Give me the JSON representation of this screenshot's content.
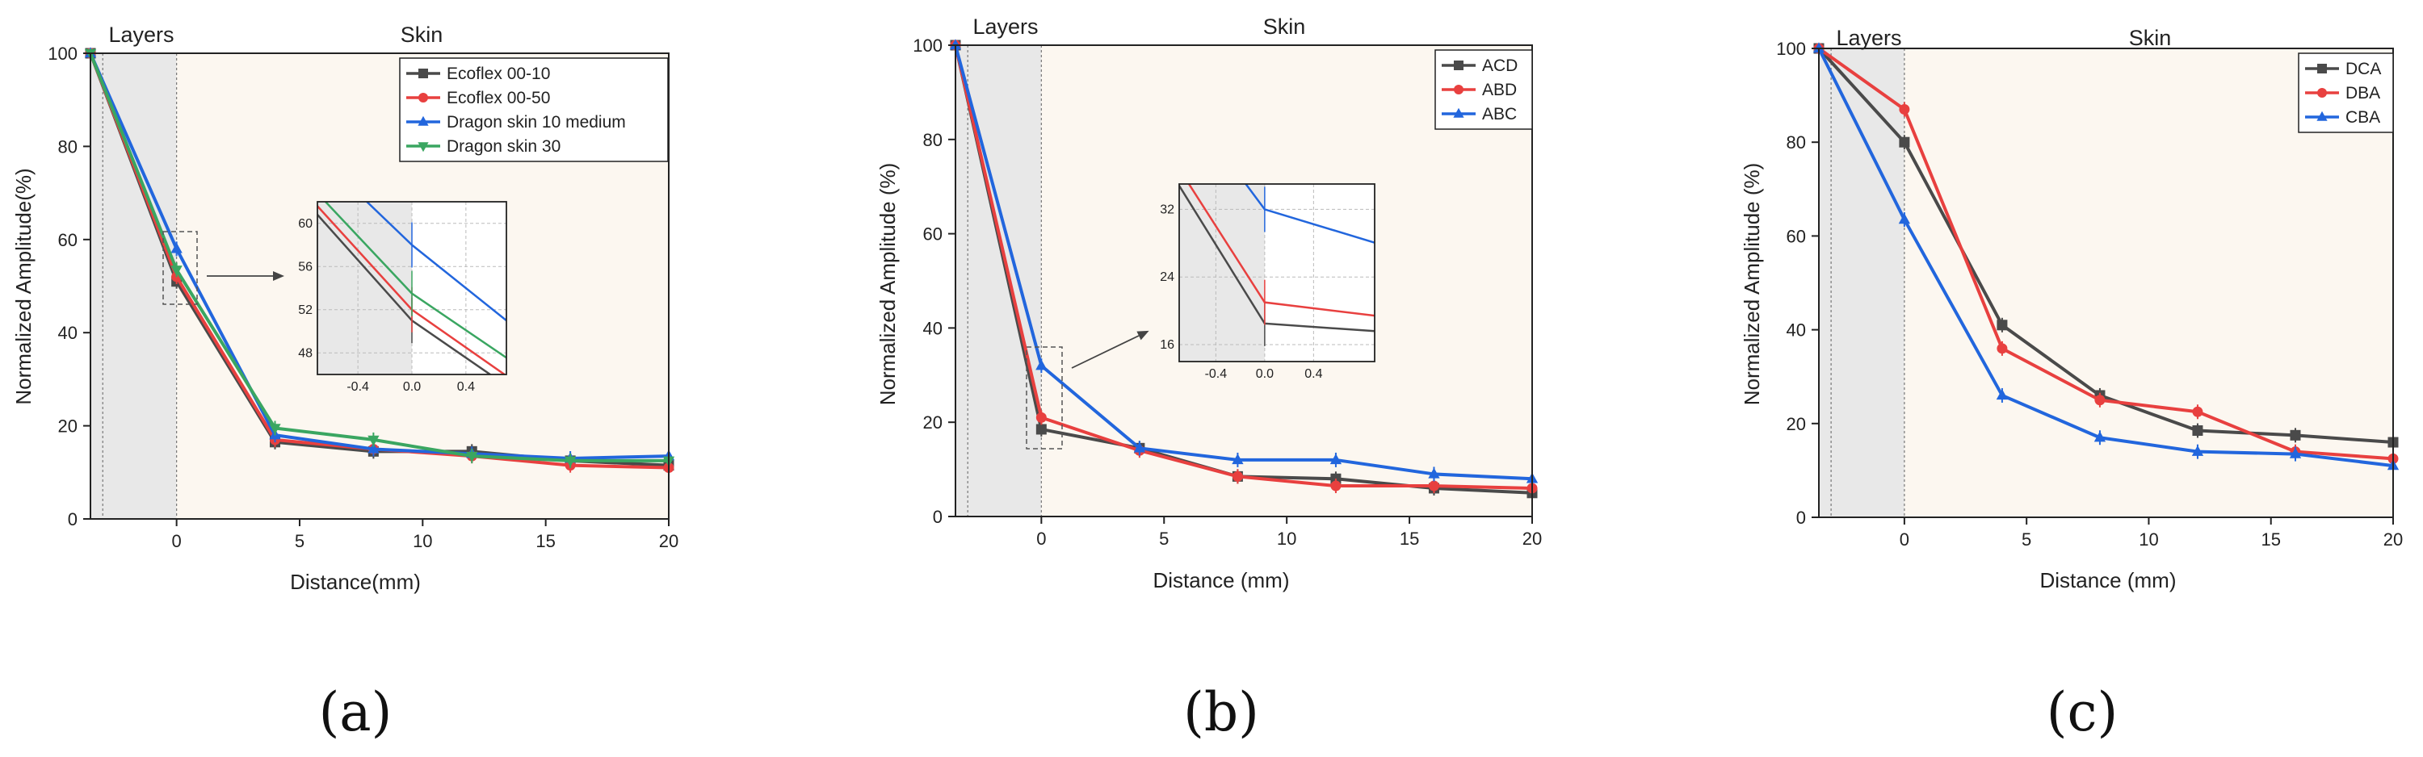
{
  "colors": {
    "layer_bg": "#e8e8e8",
    "skin_bg": "#fcf7f0",
    "black": "#4a4a4a",
    "red": "#e8403f",
    "blue": "#2266dd",
    "green": "#3aa661"
  },
  "chart_data": [
    {
      "type": "line",
      "panel_label": "(a)",
      "xlabel": "Distance(mm)",
      "ylabel": "Normalized Amplitude(%)",
      "xlim": [
        -3.5,
        20
      ],
      "ylim": [
        0,
        100
      ],
      "x_ticks": [
        "0",
        "5",
        "10",
        "15",
        "20"
      ],
      "y_ticks": [
        "0",
        "20",
        "40",
        "60",
        "80",
        "100"
      ],
      "region_labels": [
        "Layers",
        "Skin"
      ],
      "layer_region": [
        -3,
        0
      ],
      "legend": "top-right",
      "series": [
        {
          "name": "Ecoflex 00-10",
          "color_key": "black",
          "marker": "square",
          "x": [
            -3.5,
            0,
            4,
            8,
            12,
            16,
            20
          ],
          "y": [
            100,
            51,
            16.5,
            14.5,
            14.5,
            12.5,
            11.5
          ]
        },
        {
          "name": "Ecoflex 00-50",
          "color_key": "red",
          "marker": "circle",
          "x": [
            -3.5,
            0,
            4,
            8,
            12,
            16,
            20
          ],
          "y": [
            100,
            52,
            17,
            15,
            13.5,
            11.5,
            11
          ]
        },
        {
          "name": "Dragon skin 10 medium",
          "color_key": "blue",
          "marker": "triangle-up",
          "x": [
            -3.5,
            0,
            4,
            8,
            12,
            16,
            20
          ],
          "y": [
            100,
            58,
            18,
            15,
            14,
            13,
            13.5
          ]
        },
        {
          "name": "Dragon skin 30",
          "color_key": "green",
          "marker": "triangle-down",
          "x": [
            -3.5,
            0,
            4,
            8,
            12,
            16,
            20
          ],
          "y": [
            100,
            53.5,
            19.5,
            17,
            13.5,
            12.5,
            12.5
          ]
        }
      ],
      "inset": {
        "xlim": [
          -0.7,
          0.7
        ],
        "ylim": [
          46,
          62
        ],
        "x_ticks": [
          "-0.4",
          "0.0",
          "0.4"
        ],
        "y_ticks": [
          "48",
          "52",
          "56",
          "60"
        ],
        "layer_region": [
          -0.7,
          0
        ]
      }
    },
    {
      "type": "line",
      "panel_label": "(b)",
      "xlabel": "Distance (mm)",
      "ylabel": "Normalized Amplitude (%)",
      "xlim": [
        -3.5,
        20
      ],
      "ylim": [
        0,
        100
      ],
      "x_ticks": [
        "0",
        "5",
        "10",
        "15",
        "20"
      ],
      "y_ticks": [
        "0",
        "20",
        "40",
        "60",
        "80",
        "100"
      ],
      "region_labels": [
        "Layers",
        "Skin"
      ],
      "layer_region": [
        -3,
        0
      ],
      "legend": "top-right",
      "series": [
        {
          "name": "ACD",
          "color_key": "black",
          "marker": "square",
          "x": [
            -3.5,
            0,
            4,
            8,
            12,
            16,
            20
          ],
          "y": [
            100,
            18.5,
            14.5,
            8.5,
            8,
            6,
            5
          ]
        },
        {
          "name": "ABD",
          "color_key": "red",
          "marker": "circle",
          "x": [
            -3.5,
            0,
            4,
            8,
            12,
            16,
            20
          ],
          "y": [
            100,
            21,
            14,
            8.5,
            6.5,
            6.5,
            6
          ]
        },
        {
          "name": "ABC",
          "color_key": "blue",
          "marker": "triangle-up",
          "x": [
            -3.5,
            0,
            4,
            8,
            12,
            16,
            20
          ],
          "y": [
            100,
            32,
            14.5,
            12,
            12,
            9,
            8
          ]
        }
      ],
      "inset": {
        "xlim": [
          -0.7,
          0.9
        ],
        "ylim": [
          14,
          35
        ],
        "x_ticks": [
          "-0.4",
          "0.0",
          "0.4"
        ],
        "y_ticks": [
          "16",
          "24",
          "32"
        ],
        "layer_region": [
          -0.7,
          0
        ]
      }
    },
    {
      "type": "line",
      "panel_label": "(c)",
      "xlabel": "Distance (mm)",
      "ylabel": "Normalized Amplitude (%)",
      "xlim": [
        -3.5,
        20
      ],
      "ylim": [
        0,
        100
      ],
      "x_ticks": [
        "0",
        "5",
        "10",
        "15",
        "20"
      ],
      "y_ticks": [
        "0",
        "20",
        "40",
        "60",
        "80",
        "100"
      ],
      "region_labels": [
        "Layers",
        "Skin"
      ],
      "layer_region": [
        -3,
        0
      ],
      "legend": "top-right",
      "series": [
        {
          "name": "DCA",
          "color_key": "black",
          "marker": "square",
          "x": [
            -3.5,
            0,
            4,
            8,
            12,
            16,
            20
          ],
          "y": [
            100,
            80,
            41,
            26,
            18.5,
            17.5,
            16
          ]
        },
        {
          "name": "DBA",
          "color_key": "red",
          "marker": "circle",
          "x": [
            -3.5,
            0,
            4,
            8,
            12,
            16,
            20
          ],
          "y": [
            100,
            87,
            36,
            25,
            22.5,
            14,
            12.5
          ]
        },
        {
          "name": "CBA",
          "color_key": "blue",
          "marker": "triangle-up",
          "x": [
            -3.5,
            0,
            4,
            8,
            12,
            16,
            20
          ],
          "y": [
            100,
            63.5,
            26,
            17,
            14,
            13.5,
            11
          ]
        }
      ]
    }
  ]
}
